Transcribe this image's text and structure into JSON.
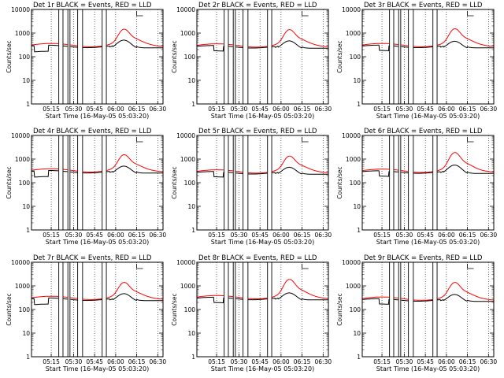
{
  "figure": {
    "x_tick_labels": [
      "05:15",
      "05:30",
      "05:45",
      "06:00",
      "06:15",
      "06:30"
    ],
    "y_tick_labels": [
      "10000",
      "1000",
      "100",
      "10",
      "1"
    ],
    "xlabel": "Start Time (16-May-05 05:03:20)",
    "ylabel": "Counts/sec",
    "colors": {
      "events": "#000000",
      "lld": "#ff0000",
      "axes": "#000000"
    }
  },
  "chart_data": [
    {
      "type": "line",
      "title": "Det 1r BLACK = Events, RED = LLD",
      "x_tick_labels": [
        "05:15",
        "05:30",
        "05:45",
        "06:00",
        "06:15",
        "06:30"
      ],
      "y_tick_labels": [
        "10000",
        "1000",
        "100",
        "10",
        "1"
      ],
      "xlabel": "Start Time (16-May-05 05:03:20)",
      "ylabel": "Counts/sec",
      "ylim": [
        1,
        10000
      ],
      "y_scale": "log",
      "x_range_min": [
        0,
        94
      ],
      "vertical_markers_min": [
        19.5,
        22.5,
        26,
        27.5,
        33,
        36.5,
        50.5,
        53.5
      ],
      "event_dips": [
        [
          2,
          12,
          0.55
        ]
      ],
      "lld_peak": 1150,
      "events_peak": 560,
      "base": 280,
      "series": [
        {
          "name": "Events",
          "color": "#000000"
        },
        {
          "name": "LLD",
          "color": "#ff0000"
        }
      ]
    },
    {
      "type": "line",
      "title": "Det 2r BLACK = Events, RED = LLD",
      "x_tick_labels": [
        "05:15",
        "05:30",
        "05:45",
        "06:00",
        "06:15",
        "06:30"
      ],
      "y_tick_labels": [
        "10000",
        "1000",
        "100",
        "10",
        "1"
      ],
      "xlabel": "Start Time (16-May-05 05:03:20)",
      "ylabel": "Counts/sec",
      "ylim": [
        1,
        10000
      ],
      "y_scale": "log",
      "x_range_min": [
        0,
        94
      ],
      "vertical_markers_min": [
        19.5,
        22.5,
        26,
        27.5,
        33,
        36.5,
        50.5,
        53.5
      ],
      "event_dips": [
        [
          12,
          19,
          0.6
        ]
      ],
      "lld_peak": 1100,
      "events_peak": 520,
      "base": 270,
      "series": [
        {
          "name": "Events",
          "color": "#000000"
        },
        {
          "name": "LLD",
          "color": "#ff0000"
        }
      ]
    },
    {
      "type": "line",
      "title": "Det 3r BLACK = Events, RED = LLD",
      "x_tick_labels": [
        "05:15",
        "05:30",
        "05:45",
        "06:00",
        "06:15",
        "06:30"
      ],
      "y_tick_labels": [
        "10000",
        "1000",
        "100",
        "10",
        "1"
      ],
      "xlabel": "Start Time (16-May-05 05:03:20)",
      "ylabel": "Counts/sec",
      "ylim": [
        1,
        10000
      ],
      "y_scale": "log",
      "x_range_min": [
        0,
        94
      ],
      "vertical_markers_min": [
        19.5,
        22.5,
        26,
        27.5,
        33,
        36.5,
        50.5,
        53.5
      ],
      "event_dips": [
        [
          12,
          19,
          0.6
        ]
      ],
      "lld_peak": 1200,
      "events_peak": 500,
      "base": 280,
      "series": [
        {
          "name": "Events",
          "color": "#000000"
        },
        {
          "name": "LLD",
          "color": "#ff0000"
        }
      ]
    },
    {
      "type": "line",
      "title": "Det 4r BLACK = Events, RED = LLD",
      "x_tick_labels": [
        "05:15",
        "05:30",
        "05:45",
        "06:00",
        "06:15",
        "06:30"
      ],
      "y_tick_labels": [
        "10000",
        "1000",
        "100",
        "10",
        "1"
      ],
      "xlabel": "Start Time (16-May-05 05:03:20)",
      "ylabel": "Counts/sec",
      "ylim": [
        1,
        10000
      ],
      "y_scale": "log",
      "x_range_min": [
        0,
        94
      ],
      "vertical_markers_min": [
        19.5,
        22.5,
        26,
        27.5,
        33,
        36.5,
        50.5,
        53.5
      ],
      "event_dips": [
        [
          2,
          12,
          0.55
        ]
      ],
      "lld_peak": 1200,
      "events_peak": 560,
      "base": 300,
      "series": [
        {
          "name": "Events",
          "color": "#000000"
        },
        {
          "name": "LLD",
          "color": "#ff0000"
        }
      ]
    },
    {
      "type": "line",
      "title": "Det 5r BLACK = Events, RED = LLD",
      "x_tick_labels": [
        "05:15",
        "05:30",
        "05:45",
        "06:00",
        "06:15",
        "06:30"
      ],
      "y_tick_labels": [
        "10000",
        "1000",
        "100",
        "10",
        "1"
      ],
      "xlabel": "Start Time (16-May-05 05:03:20)",
      "ylabel": "Counts/sec",
      "ylim": [
        1,
        10000
      ],
      "y_scale": "log",
      "x_range_min": [
        0,
        94
      ],
      "vertical_markers_min": [
        19.5,
        22.5,
        26,
        27.5,
        33,
        36.5,
        50.5,
        53.5
      ],
      "event_dips": [
        [
          12,
          19,
          0.6
        ]
      ],
      "lld_peak": 1050,
      "events_peak": 500,
      "base": 270,
      "series": [
        {
          "name": "Events",
          "color": "#000000"
        },
        {
          "name": "LLD",
          "color": "#ff0000"
        }
      ]
    },
    {
      "type": "line",
      "title": "Det 6r BLACK = Events, RED = LLD",
      "x_tick_labels": [
        "05:15",
        "05:30",
        "05:45",
        "06:00",
        "06:15",
        "06:30"
      ],
      "y_tick_labels": [
        "10000",
        "1000",
        "100",
        "10",
        "1"
      ],
      "xlabel": "Start Time (16-May-05 05:03:20)",
      "ylabel": "Counts/sec",
      "ylim": [
        1,
        10000
      ],
      "y_scale": "log",
      "x_range_min": [
        0,
        94
      ],
      "vertical_markers_min": [
        19.5,
        22.5,
        26,
        27.5,
        33,
        36.5,
        50.5,
        53.5
      ],
      "event_dips": [
        [
          12,
          19,
          0.6
        ]
      ],
      "lld_peak": 1500,
      "events_peak": 620,
      "base": 290,
      "series": [
        {
          "name": "Events",
          "color": "#000000"
        },
        {
          "name": "LLD",
          "color": "#ff0000"
        }
      ]
    },
    {
      "type": "line",
      "title": "Det 7r BLACK = Events, RED = LLD",
      "x_tick_labels": [
        "05:15",
        "05:30",
        "05:45",
        "06:00",
        "06:15",
        "06:30"
      ],
      "y_tick_labels": [
        "10000",
        "1000",
        "100",
        "10",
        "1"
      ],
      "xlabel": "Start Time (16-May-05 05:03:20)",
      "ylabel": "Counts/sec",
      "ylim": [
        1,
        10000
      ],
      "y_scale": "log",
      "x_range_min": [
        0,
        94
      ],
      "vertical_markers_min": [
        19.5,
        22.5,
        26,
        27.5,
        33,
        36.5,
        50.5,
        53.5
      ],
      "event_dips": [
        [
          2,
          12,
          0.55
        ]
      ],
      "lld_peak": 1100,
      "events_peak": 520,
      "base": 280,
      "series": [
        {
          "name": "Events",
          "color": "#000000"
        },
        {
          "name": "LLD",
          "color": "#ff0000"
        }
      ]
    },
    {
      "type": "line",
      "title": "Det 8r BLACK = Events, RED = LLD",
      "x_tick_labels": [
        "05:15",
        "05:30",
        "05:45",
        "06:00",
        "06:15",
        "06:30"
      ],
      "y_tick_labels": [
        "10000",
        "1000",
        "100",
        "10",
        "1"
      ],
      "xlabel": "Start Time (16-May-05 05:03:20)",
      "ylabel": "Counts/sec",
      "ylim": [
        1,
        10000
      ],
      "y_scale": "log",
      "x_range_min": [
        0,
        94
      ],
      "vertical_markers_min": [
        19.5,
        22.5,
        26,
        27.5,
        33,
        36.5,
        50.5,
        53.5
      ],
      "event_dips": [
        [
          12,
          19,
          0.6
        ]
      ],
      "lld_peak": 1500,
      "events_peak": 560,
      "base": 300,
      "series": [
        {
          "name": "Events",
          "color": "#000000"
        },
        {
          "name": "LLD",
          "color": "#ff0000"
        }
      ]
    },
    {
      "type": "line",
      "title": "Det 9r BLACK = Events, RED = LLD",
      "x_tick_labels": [
        "05:15",
        "05:30",
        "05:45",
        "06:00",
        "06:15",
        "06:30"
      ],
      "y_tick_labels": [
        "10000",
        "1000",
        "100",
        "10",
        "1"
      ],
      "xlabel": "Start Time (16-May-05 05:03:20)",
      "ylabel": "Counts/sec",
      "ylim": [
        1,
        10000
      ],
      "y_scale": "log",
      "x_range_min": [
        0,
        94
      ],
      "vertical_markers_min": [
        19.5,
        22.5,
        26,
        27.5,
        33,
        36.5,
        50.5,
        53.5
      ],
      "event_dips": [
        [
          12,
          19,
          0.6
        ]
      ],
      "lld_peak": 1100,
      "events_peak": 480,
      "base": 260,
      "series": [
        {
          "name": "Events",
          "color": "#000000"
        },
        {
          "name": "LLD",
          "color": "#ff0000"
        }
      ]
    }
  ]
}
